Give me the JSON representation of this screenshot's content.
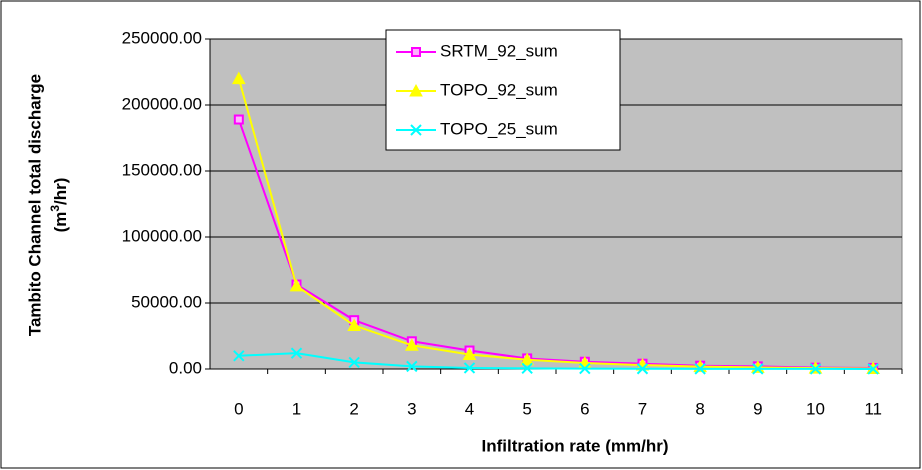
{
  "chart_data": {
    "type": "line",
    "xlabel": "Infiltration rate (mm/hr)",
    "ylabel": "Tambito Channel total discharge",
    "ylabel_unit": {
      "before": "(m",
      "sup": "3",
      "after": "/hr)"
    },
    "categories": [
      "0",
      "1",
      "2",
      "3",
      "4",
      "5",
      "6",
      "7",
      "8",
      "9",
      "10",
      "11"
    ],
    "ylim": [
      0,
      250000
    ],
    "yticks": [
      {
        "value": 0,
        "label": "0.00"
      },
      {
        "value": 50000,
        "label": "50000.00"
      },
      {
        "value": 100000,
        "label": "100000.00"
      },
      {
        "value": 150000,
        "label": "150000.00"
      },
      {
        "value": 200000,
        "label": "200000.00"
      },
      {
        "value": 250000,
        "label": "250000.00"
      }
    ],
    "grid": true,
    "plot_background": "#c0c0c0",
    "legend": "top",
    "series": [
      {
        "name": "SRTM_92_sum",
        "color": "#ff00ff",
        "marker": "square",
        "values": [
          189000,
          64000,
          37000,
          21000,
          14000,
          8000,
          5500,
          4000,
          2500,
          2000,
          1000,
          800
        ]
      },
      {
        "name": "TOPO_92_sum",
        "color": "#ffff00",
        "marker": "triangle",
        "values": [
          220000,
          63000,
          33000,
          18000,
          11000,
          7000,
          4500,
          3000,
          1800,
          1200,
          700,
          400
        ]
      },
      {
        "name": "TOPO_25_sum",
        "color": "#00ffff",
        "marker": "x",
        "values": [
          10000,
          12000,
          5000,
          2000,
          800,
          500,
          300,
          200,
          100,
          80,
          50,
          30
        ]
      }
    ]
  }
}
